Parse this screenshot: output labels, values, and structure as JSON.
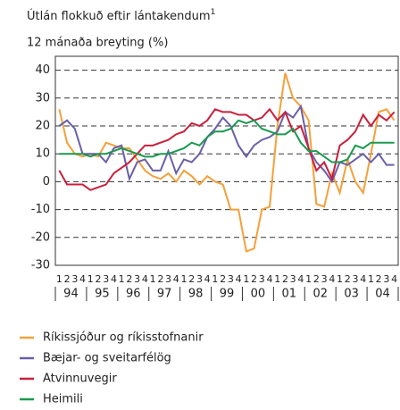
{
  "chart_data": {
    "type": "line",
    "title": "Útlán flokkuð eftir lántakendum",
    "title_note": "1",
    "subtitle": "12 mánaða breyting (%)",
    "categories": [
      "1",
      "2",
      "3",
      "4",
      "1",
      "2",
      "3",
      "4",
      "1",
      "2",
      "3",
      "4",
      "1",
      "2",
      "3",
      "4",
      "1",
      "2",
      "3",
      "4",
      "1",
      "2",
      "3",
      "4",
      "1",
      "2",
      "3",
      "4",
      "1",
      "2",
      "3",
      "4",
      "1",
      "2",
      "3",
      "4",
      "1",
      "2",
      "3",
      "4",
      "1",
      "2",
      "3",
      "4"
    ],
    "years": [
      "94",
      "95",
      "96",
      "97",
      "98",
      "99",
      "00",
      "01",
      "02",
      "03",
      "04"
    ],
    "ylim": [
      -30,
      45
    ],
    "yticks": [
      -30,
      -20,
      -10,
      0,
      10,
      20,
      30,
      40
    ],
    "grid": true,
    "series": [
      {
        "name": "Ríkissjóður og ríkisstofnanir",
        "color": "#f5a03a",
        "values": [
          26,
          14,
          10,
          9,
          10,
          9,
          14,
          13,
          12,
          12,
          8,
          4,
          2,
          1,
          3,
          0,
          4,
          2,
          -1,
          2,
          0,
          -1,
          -10,
          -10,
          -25,
          -24,
          -10,
          -9,
          20,
          39,
          30,
          27,
          22,
          -8,
          -9,
          3,
          -4,
          8,
          0,
          -4,
          10,
          25,
          26,
          22
        ]
      },
      {
        "name": "Bæjar- og sveitarfélög",
        "color": "#6a5fa8",
        "values": [
          20,
          22,
          19,
          10,
          10,
          10,
          7,
          12,
          13,
          1,
          7,
          8,
          4,
          4,
          11,
          3,
          8,
          7,
          10,
          16,
          19,
          23,
          20,
          13,
          9,
          13,
          15,
          16,
          18,
          25,
          23,
          27,
          12,
          7,
          4,
          0,
          7,
          6,
          8,
          10,
          7,
          10,
          6,
          6
        ]
      },
      {
        "name": "Atvinnuvegir",
        "color": "#c8203c",
        "values": [
          4,
          -1,
          -1,
          -1,
          -3,
          -2,
          -1,
          3,
          5,
          7,
          10,
          13,
          13,
          14,
          15,
          17,
          18,
          21,
          20,
          22,
          26,
          25,
          25,
          24,
          24,
          22,
          23,
          26,
          22,
          25,
          18,
          20,
          12,
          4,
          7,
          1,
          13,
          15,
          18,
          24,
          20,
          24,
          22,
          25
        ]
      },
      {
        "name": "Heimili",
        "color": "#1a9a50",
        "values": [
          10,
          10,
          10,
          10,
          9,
          10,
          10,
          11,
          12,
          11,
          10,
          9,
          9,
          10,
          10,
          11,
          12,
          14,
          13,
          16,
          18,
          18,
          19,
          22,
          21,
          22,
          19,
          18,
          17,
          17,
          19,
          14,
          11,
          11,
          9,
          7,
          7,
          8,
          13,
          12,
          14,
          14,
          14,
          14
        ]
      }
    ]
  }
}
